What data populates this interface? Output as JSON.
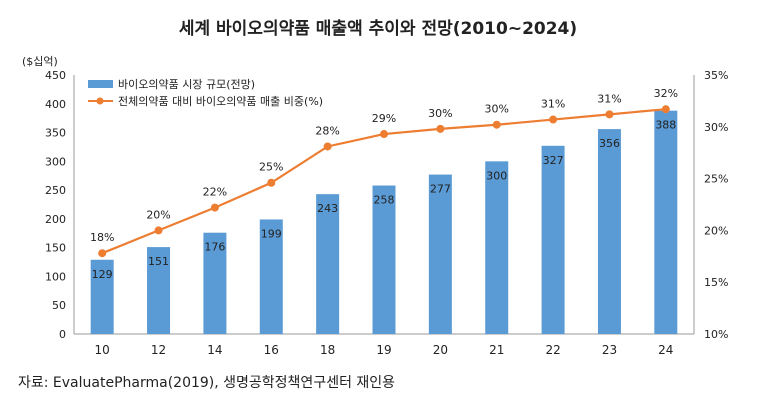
{
  "chart_data": {
    "type": "bar+line",
    "title": "세계 바이오의약품 매출액 추이와 전망(2010~2024)",
    "categories": [
      "10",
      "12",
      "14",
      "16",
      "18",
      "19",
      "20",
      "21",
      "22",
      "23",
      "24"
    ],
    "series": [
      {
        "name": "바이오의약품 시장 규모(전망)",
        "type": "bar",
        "axis": "left",
        "color": "#5b9bd5",
        "values": [
          129,
          151,
          176,
          199,
          243,
          258,
          277,
          300,
          327,
          356,
          388
        ],
        "labels": [
          "129",
          "151",
          "176",
          "199",
          "243",
          "258",
          "277",
          "300",
          "327",
          "356",
          "388"
        ]
      },
      {
        "name": "전체의약품 대비 바이오의약품 매출 비중(%)",
        "type": "line",
        "axis": "right",
        "color": "#ed7d31",
        "values": [
          17.8,
          20,
          22.2,
          24.6,
          28.1,
          29.3,
          29.8,
          30.2,
          30.7,
          31.2,
          31.7
        ],
        "labels": [
          "18%",
          "20%",
          "22%",
          "25%",
          "28%",
          "29%",
          "30%",
          "30%",
          "31%",
          "31%",
          "32%"
        ]
      }
    ],
    "ylabel_left": "($십억)",
    "ylim_left": [
      0,
      450
    ],
    "yticks_left": [
      "0",
      "50",
      "100",
      "150",
      "200",
      "250",
      "300",
      "350",
      "400",
      "450"
    ],
    "ylim_right": [
      10,
      35
    ],
    "yticks_right": [
      "10%",
      "15%",
      "20%",
      "25%",
      "30%",
      "35%"
    ],
    "legend_position": "top-left",
    "grid": false
  },
  "source": "자료: EvaluatePharma(2019), 생명공학정책연구센터 재인용"
}
